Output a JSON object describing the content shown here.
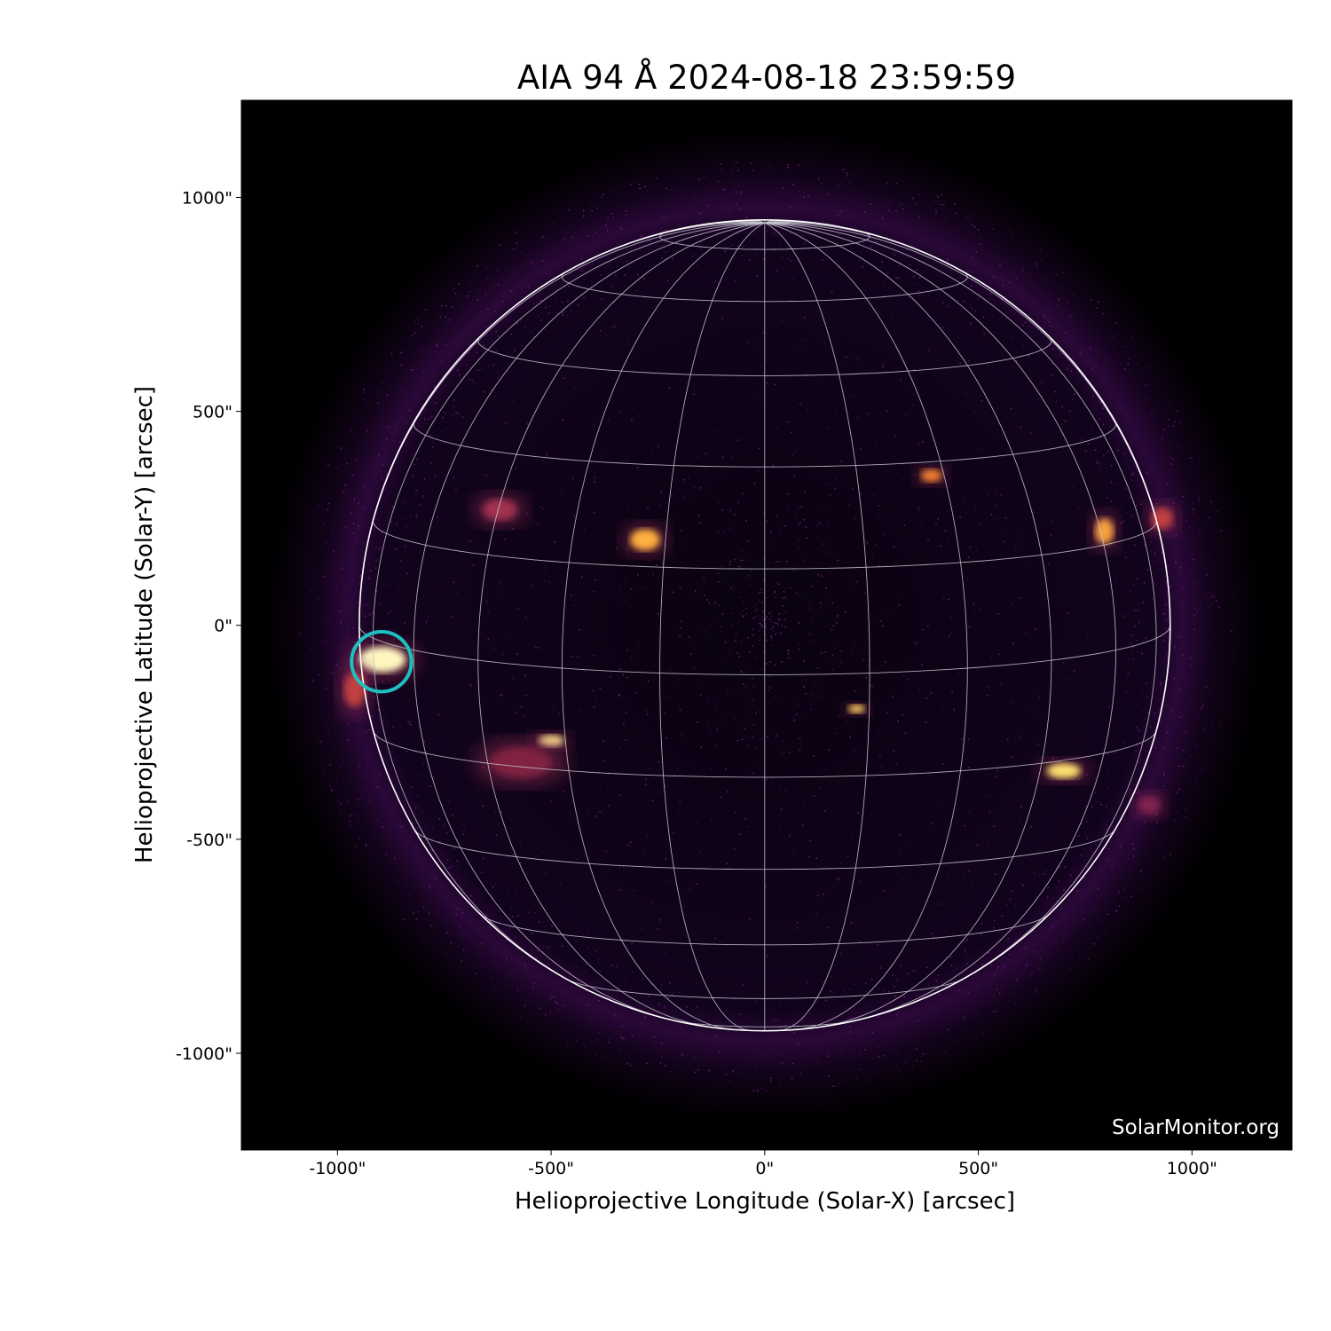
{
  "chart_data": {
    "type": "heatmap",
    "title": "AIA 94 Å 2024-08-18 23:59:59",
    "xlabel": "Helioprojective Longitude (Solar-X) [arcsec]",
    "ylabel": "Helioprojective Latitude (Solar-Y) [arcsec]",
    "xlim": [
      -1225,
      1234
    ],
    "ylim": [
      -1226,
      1227
    ],
    "xticks": [
      -1000,
      -500,
      0,
      500,
      1000
    ],
    "xtick_labels": [
      "-1000\"",
      "-500\"",
      "0\"",
      "500\"",
      "1000\""
    ],
    "yticks": [
      1000,
      500,
      0,
      -500,
      -1000
    ],
    "ytick_labels": [
      "1000\"",
      "500\"",
      "0\"",
      "-500\"",
      "-1000\""
    ],
    "colormap": "inferno",
    "solar_radius_arcsec": 949,
    "grid": "heliographic, 15° spacing",
    "annotation": {
      "shape": "circle",
      "center": [
        -897,
        -85
      ],
      "radius": 70,
      "color": "#1fbfbf"
    },
    "watermark": "SolarMonitor.org"
  }
}
